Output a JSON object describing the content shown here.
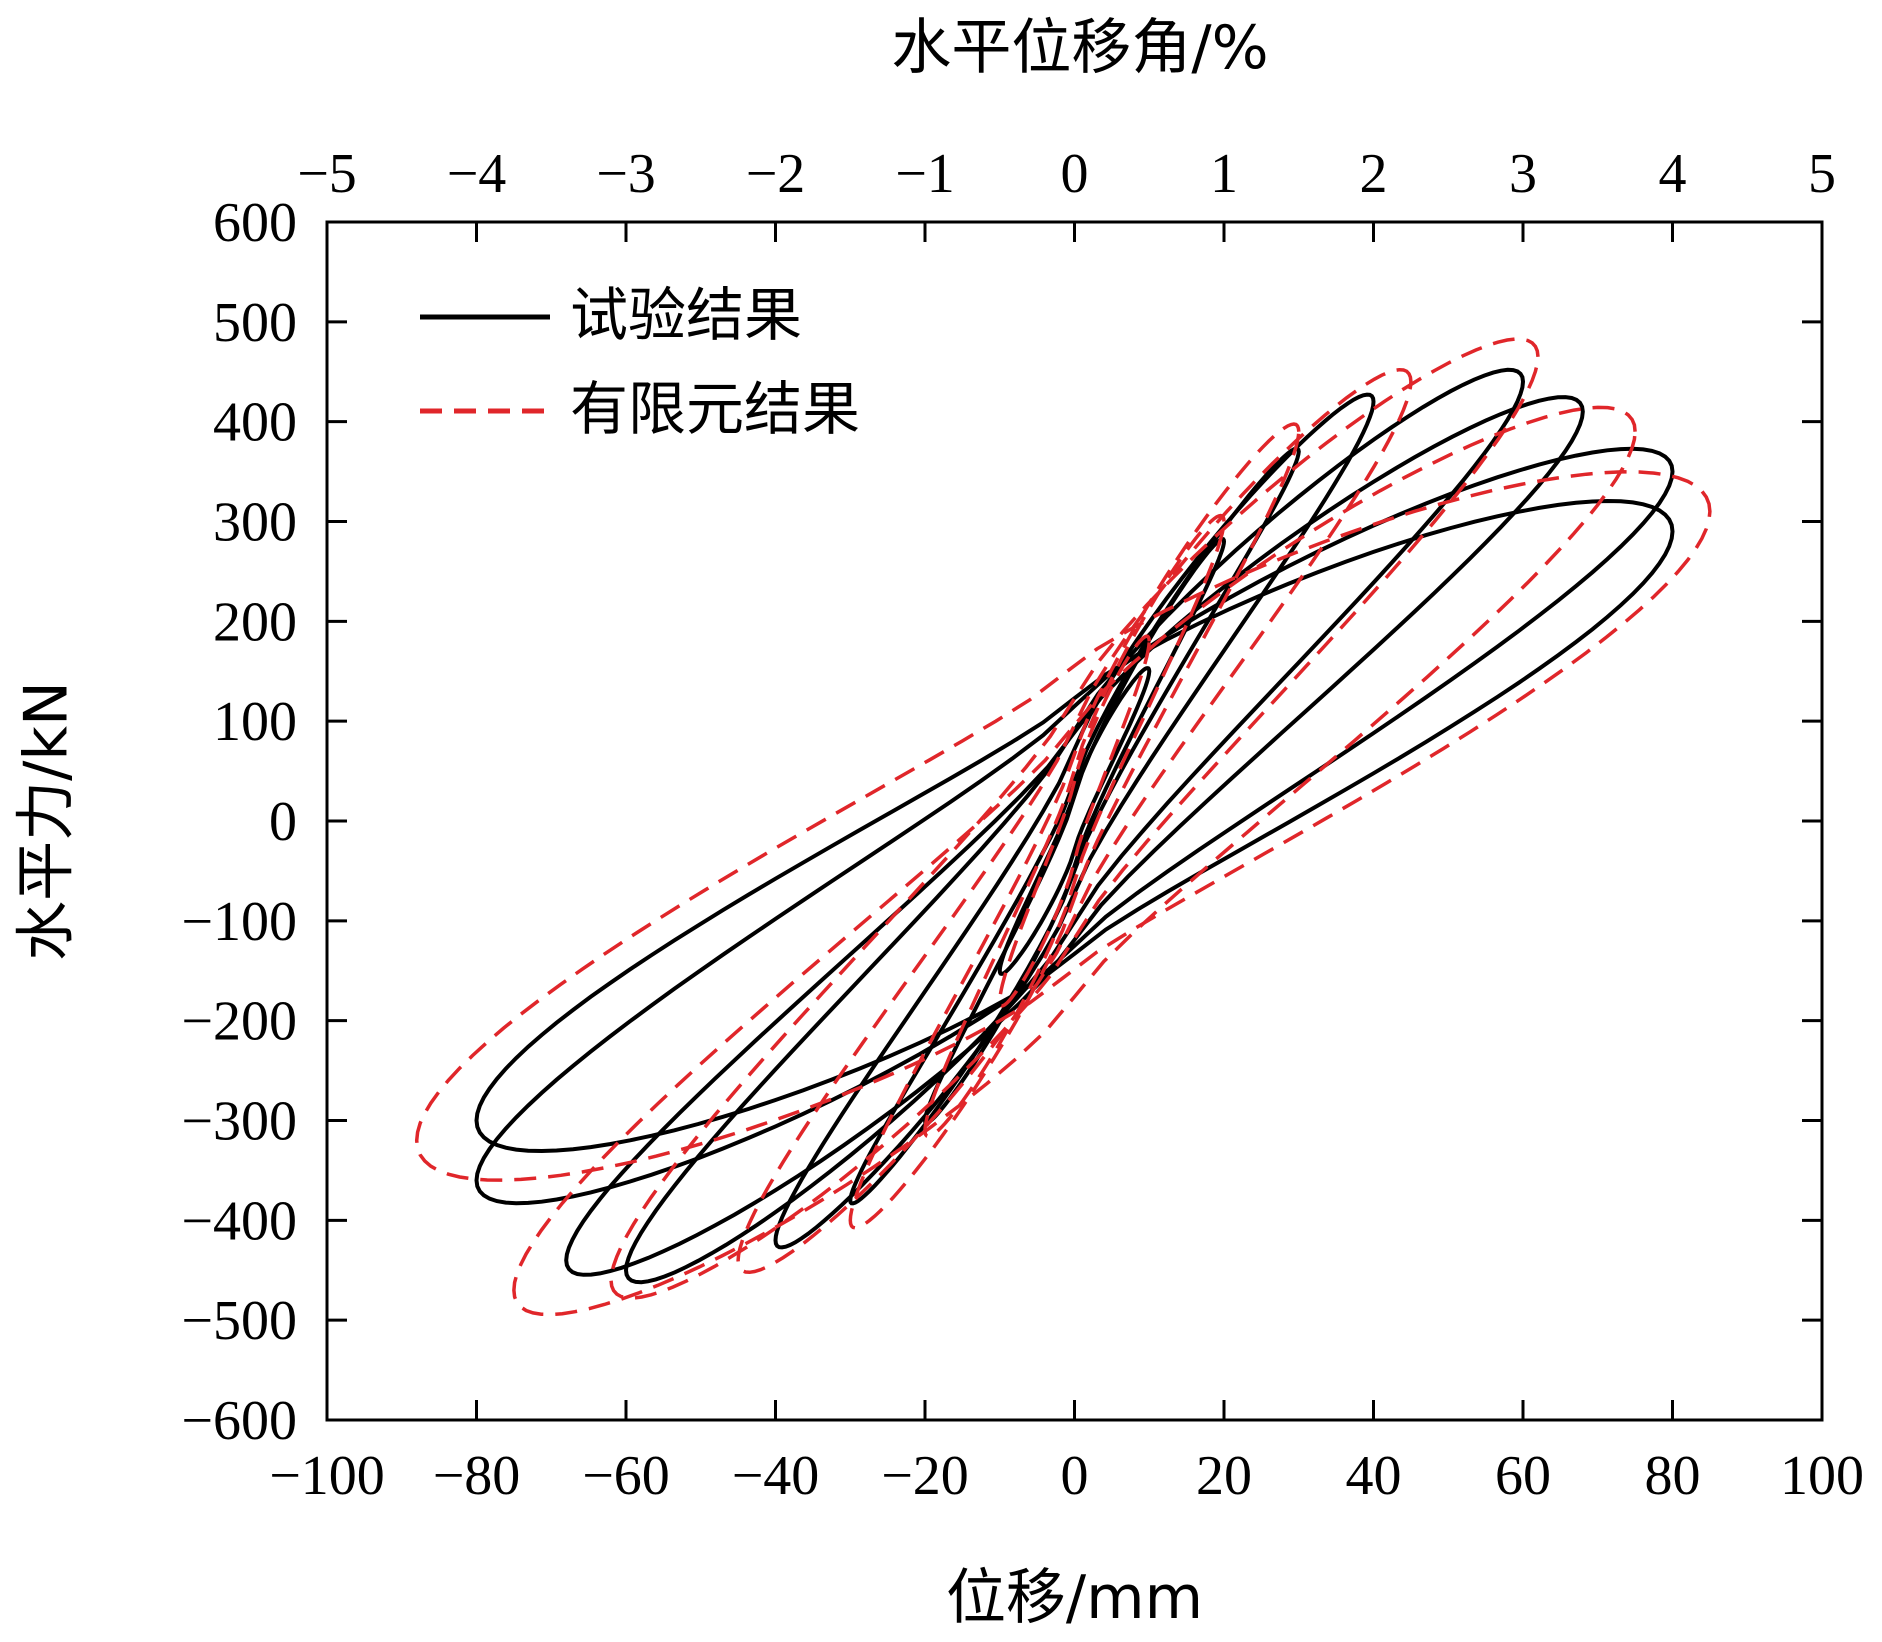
{
  "chart_data": {
    "type": "line",
    "title": "",
    "xlabel": "位移/mm",
    "ylabel": "水平力/kN",
    "x2label": "水平位移角/%",
    "xlim": [
      -100,
      100
    ],
    "ylim": [
      -600,
      600
    ],
    "x2lim": [
      -5,
      5
    ],
    "xticks": [
      "−100",
      "−80",
      "−60",
      "−40",
      "−20",
      "0",
      "20",
      "40",
      "60",
      "80",
      "100"
    ],
    "yticks": [
      "600",
      "500",
      "400",
      "300",
      "200",
      "100",
      "0",
      "−100",
      "−200",
      "−300",
      "−400",
      "−500",
      "−600"
    ],
    "x2ticks": [
      "−5",
      "−4",
      "−3",
      "−2",
      "−1",
      "0",
      "1",
      "2",
      "3",
      "4",
      "5"
    ],
    "grid": false,
    "legend_position": "top-left",
    "series": [
      {
        "name": "试验结果",
        "color": "#000000",
        "dash": "solid",
        "loops": [
          {
            "peak": [
              10,
              150
            ],
            "trough": [
              -10,
              -150
            ],
            "width": 18
          },
          {
            "peak": [
              20,
              280
            ],
            "trough": [
              -20,
              -300
            ],
            "width": 22
          },
          {
            "peak": [
              30,
              370
            ],
            "trough": [
              -30,
              -380
            ],
            "width": 28
          },
          {
            "peak": [
              40,
              420
            ],
            "trough": [
              -40,
              -420
            ],
            "width": 45
          },
          {
            "peak": [
              60,
              440
            ],
            "trough": [
              -60,
              -450
            ],
            "width": 60
          },
          {
            "peak": [
              68,
              410
            ],
            "trough": [
              -68,
              -440
            ],
            "width": 65
          },
          {
            "peak": [
              80,
              350
            ],
            "trough": [
              -80,
              -360
            ],
            "width": 75
          },
          {
            "peak": [
              80,
              290
            ],
            "trough": [
              -80,
              -300
            ],
            "width": 80
          }
        ]
      },
      {
        "name": "有限元结果",
        "color": "#e0262a",
        "dash": "dashed",
        "loops": [
          {
            "peak": [
              10,
              180
            ],
            "trough": [
              -10,
              -180
            ],
            "width": 25
          },
          {
            "peak": [
              20,
              300
            ],
            "trough": [
              -20,
              -310
            ],
            "width": 35
          },
          {
            "peak": [
              30,
              390
            ],
            "trough": [
              -30,
              -400
            ],
            "width": 45
          },
          {
            "peak": [
              45,
              440
            ],
            "trough": [
              -45,
              -440
            ],
            "width": 60
          },
          {
            "peak": [
              62,
              465
            ],
            "trough": [
              -62,
              -460
            ],
            "width": 75
          },
          {
            "peak": [
              75,
              390
            ],
            "trough": [
              -75,
              -470
            ],
            "width": 85
          },
          {
            "peak": [
              85,
              310
            ],
            "trough": [
              -88,
              -320
            ],
            "width": 95
          }
        ]
      }
    ]
  }
}
